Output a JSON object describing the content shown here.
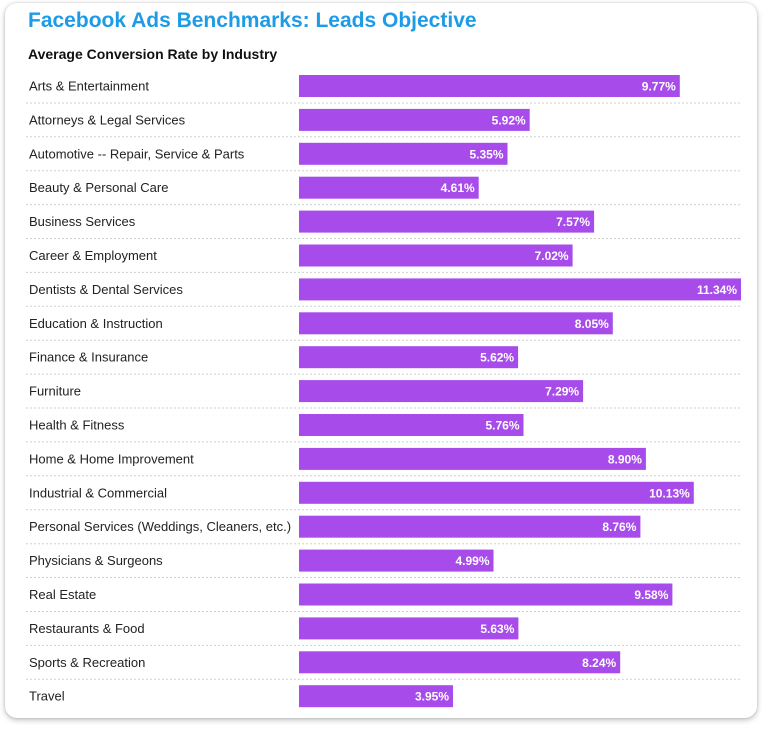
{
  "chart_data": {
    "type": "bar",
    "orientation": "horizontal",
    "title": "Facebook Ads Benchmarks: Leads Objective",
    "subtitle": "Average Conversion Rate by Industry",
    "categories": [
      "Arts & Entertainment",
      "Attorneys & Legal Services",
      "Automotive -- Repair, Service & Parts",
      "Beauty & Personal Care",
      "Business Services",
      "Career & Employment",
      "Dentists & Dental Services",
      "Education & Instruction",
      "Finance & Insurance",
      "Furniture",
      "Health & Fitness",
      "Home & Home Improvement",
      "Industrial & Commercial",
      "Personal Services (Weddings, Cleaners, etc.)",
      "Physicians & Surgeons",
      "Real Estate",
      "Restaurants & Food",
      "Sports & Recreation",
      "Travel"
    ],
    "values": [
      9.77,
      5.92,
      5.35,
      4.61,
      7.57,
      7.02,
      11.34,
      8.05,
      5.62,
      7.29,
      5.76,
      8.9,
      10.13,
      8.76,
      4.99,
      9.58,
      5.63,
      8.24,
      3.95
    ],
    "value_labels": [
      "9.77%",
      "5.92%",
      "5.35%",
      "4.61%",
      "7.57%",
      "7.02%",
      "11.34%",
      "8.05%",
      "5.62%",
      "7.29%",
      "5.76%",
      "8.90%",
      "10.13%",
      "8.76%",
      "4.99%",
      "9.58%",
      "5.63%",
      "8.24%",
      "3.95%"
    ],
    "xlim": [
      0,
      11.34
    ],
    "grid": false,
    "legend": "none",
    "colors": {
      "bar": "#a74cea",
      "title": "#1e9be6",
      "value_label": "#ffffff"
    }
  }
}
